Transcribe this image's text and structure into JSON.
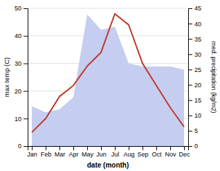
{
  "chart_data": {
    "type": "line",
    "categories": [
      "Jan",
      "Feb",
      "Mar",
      "Apr",
      "May",
      "Jun",
      "Jul",
      "Aug",
      "Sep",
      "Oct",
      "Nov",
      "Dec"
    ],
    "series": [
      {
        "type": "area",
        "color": "#c5cef0",
        "axis": "y2",
        "values": [
          13,
          11,
          12,
          16,
          43,
          38,
          39,
          27,
          26,
          26,
          26,
          25
        ]
      },
      {
        "type": "line",
        "color": "#c0392b",
        "values": [
          5,
          10,
          18,
          22,
          29,
          34,
          48,
          44,
          30,
          22,
          14,
          7
        ]
      }
    ],
    "xlabel": "date (month)",
    "ylabel": "max temp (C)",
    "y2label": "med. precipitation (kg/m2)",
    "ylim": [
      0,
      50
    ],
    "yticks": [
      0,
      10,
      20,
      30,
      40,
      50
    ],
    "y2lim": [
      0,
      45
    ],
    "y2ticks": [
      0,
      5,
      10,
      15,
      20,
      25,
      30,
      35,
      40,
      45
    ],
    "grid": true
  }
}
